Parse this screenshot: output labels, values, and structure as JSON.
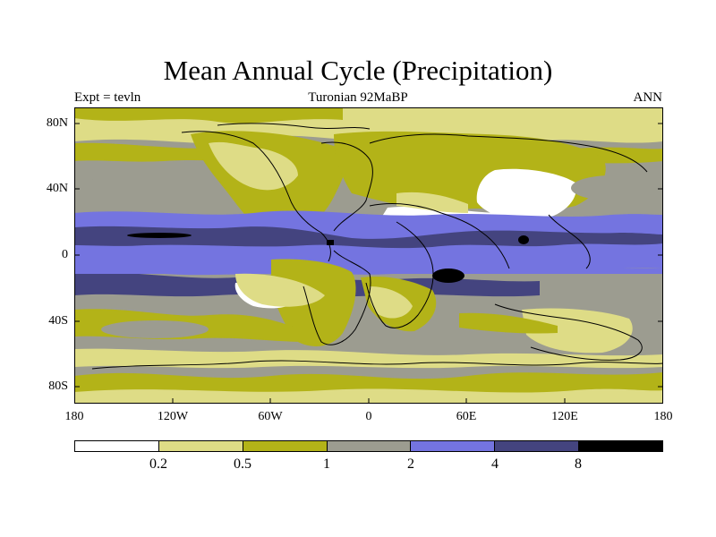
{
  "title": "Mean Annual Cycle (Precipitation)",
  "subtitle_left": "Expt = tevln",
  "subtitle_center": "Turonian  92MaBP",
  "subtitle_right": "ANN",
  "lat_labels": [
    "80N",
    "40N",
    "0",
    "40S",
    "80S"
  ],
  "lon_labels": [
    "180",
    "120W",
    "60W",
    "0",
    "60E",
    "120E",
    "180"
  ],
  "colorbar": {
    "levels": [
      "0.2",
      "0.5",
      "1",
      "2",
      "4",
      "8"
    ],
    "colors": [
      "#ffffff",
      "#dedc86",
      "#b3b318",
      "#9c9c90",
      "#7474e0",
      "#44447f",
      "#000000"
    ]
  }
}
